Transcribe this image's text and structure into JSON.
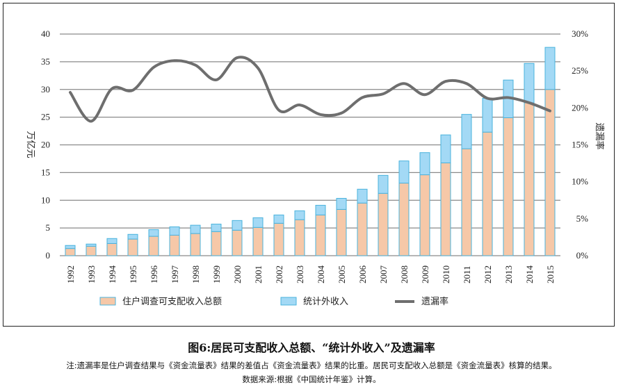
{
  "chart_data": {
    "type": "bar",
    "stacked": true,
    "categories": [
      "1992",
      "1993",
      "1994",
      "1995",
      "1996",
      "1997",
      "1998",
      "1999",
      "2000",
      "2001",
      "2002",
      "2003",
      "2004",
      "2005",
      "2006",
      "2007",
      "2008",
      "2009",
      "2010",
      "2011",
      "2012",
      "2013",
      "2014",
      "2015"
    ],
    "series": [
      {
        "name": "住户调查可支配收入总额",
        "type": "bar",
        "axis": "left",
        "color": "#f6c8a8",
        "values": [
          1.3,
          1.7,
          2.2,
          3.0,
          3.5,
          3.7,
          4.0,
          4.35,
          4.6,
          5.1,
          5.85,
          6.5,
          7.35,
          8.35,
          9.5,
          11.25,
          13.1,
          14.6,
          16.75,
          19.3,
          22.3,
          24.9,
          27.6,
          30.0
        ]
      },
      {
        "name": "统计外收入",
        "type": "bar",
        "axis": "left",
        "color": "#a3d9f5",
        "values": [
          0.55,
          0.4,
          0.9,
          0.85,
          1.2,
          1.5,
          1.5,
          1.35,
          1.75,
          1.75,
          1.5,
          1.6,
          1.75,
          2.0,
          2.5,
          3.25,
          4.0,
          4.0,
          5.05,
          6.2,
          6.1,
          6.8,
          7.1,
          7.6
        ]
      },
      {
        "name": "遗漏率",
        "type": "line",
        "axis": "right",
        "color": "#6e6e6e",
        "values": [
          22.1,
          18.2,
          22.6,
          22.4,
          25.5,
          26.4,
          25.8,
          23.8,
          26.8,
          25.4,
          19.7,
          20.4,
          19.1,
          19.3,
          21.4,
          21.9,
          23.3,
          21.8,
          23.6,
          23.3,
          21.3,
          21.4,
          20.7,
          19.6
        ]
      }
    ],
    "ylabel": "万亿元",
    "y2label": "遗漏率",
    "ylim": [
      0,
      40
    ],
    "y2lim": [
      0,
      30
    ],
    "yticks": [
      "0",
      "5",
      "10",
      "15",
      "20",
      "25",
      "30",
      "35",
      "40"
    ],
    "y2ticks": [
      "0%",
      "5%",
      "10%",
      "15%",
      "20%",
      "25%",
      "30%"
    ],
    "grid": true,
    "legend_position": "bottom",
    "bar_border_color": "#4ab3dd"
  },
  "caption": "图6:居民可支配收入总额、“统计外收入”及遗漏率",
  "note": "注:遗漏率是住户调查结果与《资金流量表》结果的差值占《资金流量表》结果的比重。居民可支配收入总额是《资金流量表》核算的结果。",
  "source": "数据来源:根据《中国统计年鉴》计算。"
}
